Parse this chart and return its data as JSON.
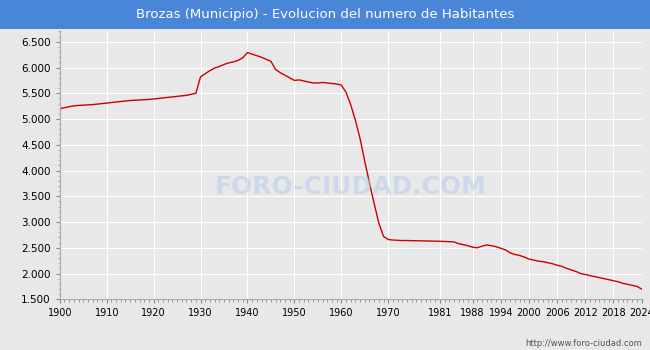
{
  "title": "Brozas (Municipio) - Evolucion del numero de Habitantes",
  "title_bg_color": "#4a86d8",
  "title_text_color": "white",
  "line_color": "#cc0000",
  "bg_color": "#e8e8e8",
  "plot_bg_color": "#e8e8e8",
  "watermark": "FORO-CIUDAD.COM",
  "url_text": "http://www.foro-ciudad.com",
  "ylim": [
    1500,
    6700
  ],
  "yticks": [
    1500,
    2000,
    2500,
    3000,
    3500,
    4000,
    4500,
    5000,
    5500,
    6000,
    6500
  ],
  "years": [
    1900,
    1901,
    1902,
    1903,
    1904,
    1905,
    1906,
    1907,
    1908,
    1909,
    1910,
    1911,
    1912,
    1913,
    1914,
    1915,
    1916,
    1917,
    1918,
    1919,
    1920,
    1921,
    1922,
    1923,
    1924,
    1925,
    1926,
    1927,
    1928,
    1929,
    1930,
    1931,
    1932,
    1933,
    1934,
    1935,
    1936,
    1937,
    1938,
    1939,
    1940,
    1941,
    1942,
    1943,
    1944,
    1945,
    1946,
    1947,
    1948,
    1949,
    1950,
    1951,
    1952,
    1953,
    1954,
    1955,
    1956,
    1957,
    1958,
    1959,
    1960,
    1961,
    1962,
    1963,
    1964,
    1965,
    1966,
    1967,
    1968,
    1969,
    1970,
    1971,
    1972,
    1973,
    1974,
    1975,
    1976,
    1977,
    1978,
    1979,
    1980,
    1981,
    1982,
    1983,
    1984,
    1985,
    1986,
    1987,
    1988,
    1989,
    1990,
    1991,
    1992,
    1993,
    1994,
    1995,
    1996,
    1997,
    1998,
    1999,
    2000,
    2001,
    2002,
    2003,
    2004,
    2005,
    2006,
    2007,
    2008,
    2009,
    2010,
    2011,
    2012,
    2013,
    2014,
    2015,
    2016,
    2017,
    2018,
    2019,
    2020,
    2021,
    2022,
    2023,
    2024
  ],
  "population": [
    5200,
    5220,
    5240,
    5255,
    5265,
    5270,
    5275,
    5280,
    5290,
    5300,
    5310,
    5320,
    5330,
    5340,
    5350,
    5360,
    5365,
    5370,
    5375,
    5380,
    5390,
    5400,
    5410,
    5420,
    5430,
    5440,
    5450,
    5460,
    5480,
    5500,
    5820,
    5880,
    5940,
    5990,
    6020,
    6060,
    6090,
    6110,
    6140,
    6190,
    6290,
    6260,
    6230,
    6200,
    6160,
    6120,
    5960,
    5900,
    5850,
    5800,
    5750,
    5760,
    5740,
    5720,
    5700,
    5700,
    5710,
    5700,
    5690,
    5680,
    5660,
    5520,
    5280,
    4980,
    4620,
    4180,
    3760,
    3360,
    2980,
    2720,
    2660,
    2650,
    2645,
    2640,
    2640,
    2638,
    2636,
    2634,
    2632,
    2630,
    2628,
    2626,
    2622,
    2618,
    2614,
    2580,
    2560,
    2540,
    2510,
    2500,
    2530,
    2555,
    2540,
    2520,
    2490,
    2460,
    2400,
    2370,
    2350,
    2320,
    2280,
    2260,
    2240,
    2230,
    2210,
    2190,
    2160,
    2140,
    2100,
    2070,
    2040,
    2000,
    1980,
    1960,
    1940,
    1920,
    1900,
    1880,
    1860,
    1840,
    1810,
    1790,
    1770,
    1750,
    1700
  ],
  "xticks": [
    1900,
    1910,
    1920,
    1930,
    1940,
    1950,
    1960,
    1970,
    1981,
    1988,
    1994,
    2000,
    2006,
    2012,
    2018,
    2024
  ]
}
